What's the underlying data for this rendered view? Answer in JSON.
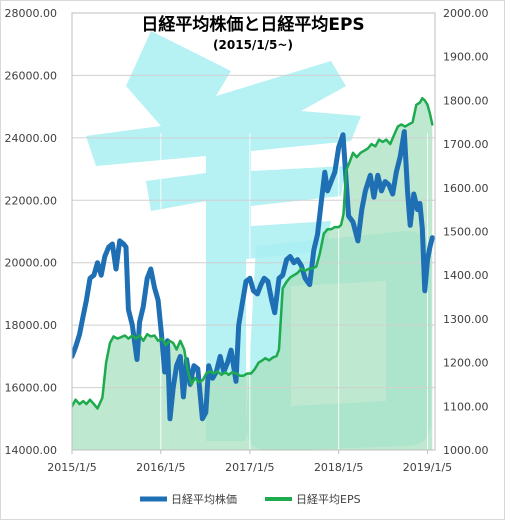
{
  "chart_data": {
    "type": "line",
    "title": "日経平均株価と日経平均EPS",
    "subtitle": "(2015/1/5~)",
    "x_ticks": [
      "2015/1/5",
      "2016/1/5",
      "2017/1/5",
      "2018/1/5",
      "2019/1/5"
    ],
    "y_left": {
      "range": [
        14000,
        28000
      ],
      "ticks": [
        "14000.00",
        "16000.00",
        "18000.00",
        "20000.00",
        "22000.00",
        "24000.00",
        "26000.00",
        "28000.00"
      ]
    },
    "y_right": {
      "range": [
        1000,
        2000
      ],
      "ticks": [
        "1000.00",
        "1100.00",
        "1200.00",
        "1300.00",
        "1400.00",
        "1500.00",
        "1600.00",
        "1700.00",
        "1800.00",
        "1900.00",
        "2000.00"
      ]
    },
    "legend_position": "bottom",
    "series": [
      {
        "name": "日経平均株価",
        "axis": "left",
        "color": "#1f6fb4",
        "points": [
          [
            "2015-01-05",
            17000
          ],
          [
            "2015-01-20",
            17300
          ],
          [
            "2015-02-05",
            17700
          ],
          [
            "2015-02-20",
            18300
          ],
          [
            "2015-03-05",
            18800
          ],
          [
            "2015-03-20",
            19500
          ],
          [
            "2015-04-05",
            19600
          ],
          [
            "2015-04-20",
            20000
          ],
          [
            "2015-05-05",
            19600
          ],
          [
            "2015-05-20",
            20200
          ],
          [
            "2015-06-05",
            20500
          ],
          [
            "2015-06-20",
            20600
          ],
          [
            "2015-07-05",
            19800
          ],
          [
            "2015-07-20",
            20700
          ],
          [
            "2015-08-05",
            20600
          ],
          [
            "2015-08-15",
            20500
          ],
          [
            "2015-08-25",
            18500
          ],
          [
            "2015-09-10",
            18000
          ],
          [
            "2015-09-29",
            16900
          ],
          [
            "2015-10-10",
            18100
          ],
          [
            "2015-10-25",
            18600
          ],
          [
            "2015-11-10",
            19500
          ],
          [
            "2015-11-25",
            19800
          ],
          [
            "2015-12-10",
            19200
          ],
          [
            "2015-12-25",
            18800
          ],
          [
            "2016-01-08",
            17700
          ],
          [
            "2016-01-21",
            16500
          ],
          [
            "2016-02-01",
            17500
          ],
          [
            "2016-02-12",
            15000
          ],
          [
            "2016-02-25",
            16000
          ],
          [
            "2016-03-10",
            16700
          ],
          [
            "2016-03-25",
            17000
          ],
          [
            "2016-04-07",
            15700
          ],
          [
            "2016-04-20",
            16900
          ],
          [
            "2016-05-05",
            16100
          ],
          [
            "2016-05-20",
            16700
          ],
          [
            "2016-06-05",
            16600
          ],
          [
            "2016-06-24",
            15000
          ],
          [
            "2016-07-08",
            15200
          ],
          [
            "2016-07-20",
            16700
          ],
          [
            "2016-08-05",
            16300
          ],
          [
            "2016-08-20",
            16500
          ],
          [
            "2016-09-05",
            17000
          ],
          [
            "2016-09-20",
            16500
          ],
          [
            "2016-10-05",
            16800
          ],
          [
            "2016-10-20",
            17200
          ],
          [
            "2016-11-09",
            16200
          ],
          [
            "2016-11-20",
            18000
          ],
          [
            "2016-12-05",
            18700
          ],
          [
            "2016-12-20",
            19400
          ],
          [
            "2017-01-05",
            19500
          ],
          [
            "2017-01-20",
            19100
          ],
          [
            "2017-02-05",
            19000
          ],
          [
            "2017-02-20",
            19300
          ],
          [
            "2017-03-05",
            19500
          ],
          [
            "2017-03-20",
            19400
          ],
          [
            "2017-04-05",
            18800
          ],
          [
            "2017-04-17",
            18400
          ],
          [
            "2017-05-05",
            19500
          ],
          [
            "2017-05-20",
            19600
          ],
          [
            "2017-06-05",
            20100
          ],
          [
            "2017-06-20",
            20200
          ],
          [
            "2017-07-05",
            20000
          ],
          [
            "2017-07-20",
            20100
          ],
          [
            "2017-08-05",
            19900
          ],
          [
            "2017-08-20",
            19500
          ],
          [
            "2017-09-08",
            19300
          ],
          [
            "2017-09-25",
            20400
          ],
          [
            "2017-10-10",
            20900
          ],
          [
            "2017-10-25",
            21900
          ],
          [
            "2017-11-09",
            22900
          ],
          [
            "2017-11-20",
            22300
          ],
          [
            "2017-12-05",
            22600
          ],
          [
            "2017-12-20",
            22900
          ],
          [
            "2018-01-05",
            23700
          ],
          [
            "2018-01-23",
            24100
          ],
          [
            "2018-02-05",
            22600
          ],
          [
            "2018-02-15",
            21500
          ],
          [
            "2018-03-05",
            21300
          ],
          [
            "2018-03-25",
            20700
          ],
          [
            "2018-04-10",
            21700
          ],
          [
            "2018-04-25",
            22300
          ],
          [
            "2018-05-15",
            22800
          ],
          [
            "2018-05-30",
            22100
          ],
          [
            "2018-06-15",
            22800
          ],
          [
            "2018-06-30",
            22300
          ],
          [
            "2018-07-15",
            22600
          ],
          [
            "2018-07-30",
            22500
          ],
          [
            "2018-08-15",
            22200
          ],
          [
            "2018-08-30",
            22900
          ],
          [
            "2018-09-15",
            23400
          ],
          [
            "2018-10-02",
            24200
          ],
          [
            "2018-10-15",
            22300
          ],
          [
            "2018-10-26",
            21200
          ],
          [
            "2018-11-10",
            22200
          ],
          [
            "2018-11-25",
            21700
          ],
          [
            "2018-12-05",
            21900
          ],
          [
            "2018-12-15",
            21100
          ],
          [
            "2018-12-25",
            19100
          ],
          [
            "2019-01-05",
            20100
          ],
          [
            "2019-01-15",
            20500
          ],
          [
            "2019-01-25",
            20800
          ]
        ]
      },
      {
        "name": "日経平均EPS",
        "axis": "right",
        "color": "#1eaa4e",
        "points": [
          [
            "2015-01-05",
            1100
          ],
          [
            "2015-01-20",
            1115
          ],
          [
            "2015-02-05",
            1105
          ],
          [
            "2015-02-20",
            1112
          ],
          [
            "2015-03-05",
            1105
          ],
          [
            "2015-03-20",
            1115
          ],
          [
            "2015-04-05",
            1105
          ],
          [
            "2015-04-20",
            1095
          ],
          [
            "2015-05-10",
            1120
          ],
          [
            "2015-05-25",
            1200
          ],
          [
            "2015-06-10",
            1245
          ],
          [
            "2015-06-25",
            1260
          ],
          [
            "2015-07-10",
            1255
          ],
          [
            "2015-07-25",
            1258
          ],
          [
            "2015-08-10",
            1262
          ],
          [
            "2015-08-25",
            1255
          ],
          [
            "2015-09-10",
            1262
          ],
          [
            "2015-09-25",
            1255
          ],
          [
            "2015-10-10",
            1262
          ],
          [
            "2015-10-25",
            1250
          ],
          [
            "2015-11-10",
            1265
          ],
          [
            "2015-11-25",
            1260
          ],
          [
            "2015-12-10",
            1262
          ],
          [
            "2015-12-25",
            1250
          ],
          [
            "2016-01-10",
            1255
          ],
          [
            "2016-01-25",
            1240
          ],
          [
            "2016-02-10",
            1250
          ],
          [
            "2016-02-25",
            1245
          ],
          [
            "2016-03-10",
            1230
          ],
          [
            "2016-03-25",
            1250
          ],
          [
            "2016-04-10",
            1230
          ],
          [
            "2016-04-25",
            1180
          ],
          [
            "2016-05-10",
            1150
          ],
          [
            "2016-05-25",
            1165
          ],
          [
            "2016-06-10",
            1155
          ],
          [
            "2016-06-25",
            1160
          ],
          [
            "2016-07-10",
            1175
          ],
          [
            "2016-07-25",
            1180
          ],
          [
            "2016-08-10",
            1175
          ],
          [
            "2016-08-25",
            1180
          ],
          [
            "2016-09-10",
            1172
          ],
          [
            "2016-09-25",
            1178
          ],
          [
            "2016-10-10",
            1172
          ],
          [
            "2016-10-25",
            1178
          ],
          [
            "2016-11-10",
            1175
          ],
          [
            "2016-11-25",
            1170
          ],
          [
            "2016-12-10",
            1170
          ],
          [
            "2016-12-25",
            1175
          ],
          [
            "2017-01-10",
            1175
          ],
          [
            "2017-01-25",
            1185
          ],
          [
            "2017-02-10",
            1200
          ],
          [
            "2017-02-25",
            1205
          ],
          [
            "2017-03-10",
            1210
          ],
          [
            "2017-03-25",
            1205
          ],
          [
            "2017-04-10",
            1212
          ],
          [
            "2017-04-25",
            1215
          ],
          [
            "2017-05-05",
            1230
          ],
          [
            "2017-05-20",
            1370
          ],
          [
            "2017-06-05",
            1385
          ],
          [
            "2017-06-20",
            1395
          ],
          [
            "2017-07-05",
            1400
          ],
          [
            "2017-07-20",
            1405
          ],
          [
            "2017-08-05",
            1415
          ],
          [
            "2017-08-20",
            1410
          ],
          [
            "2017-09-05",
            1415
          ],
          [
            "2017-09-20",
            1415
          ],
          [
            "2017-10-05",
            1420
          ],
          [
            "2017-10-20",
            1450
          ],
          [
            "2017-11-05",
            1495
          ],
          [
            "2017-11-20",
            1505
          ],
          [
            "2017-12-05",
            1505
          ],
          [
            "2017-12-20",
            1510
          ],
          [
            "2018-01-05",
            1510
          ],
          [
            "2018-01-15",
            1515
          ],
          [
            "2018-01-25",
            1540
          ],
          [
            "2018-02-05",
            1640
          ],
          [
            "2018-02-20",
            1660
          ],
          [
            "2018-03-05",
            1680
          ],
          [
            "2018-03-20",
            1670
          ],
          [
            "2018-04-05",
            1680
          ],
          [
            "2018-04-20",
            1685
          ],
          [
            "2018-05-05",
            1690
          ],
          [
            "2018-05-20",
            1700
          ],
          [
            "2018-06-05",
            1695
          ],
          [
            "2018-06-20",
            1710
          ],
          [
            "2018-07-05",
            1705
          ],
          [
            "2018-07-20",
            1710
          ],
          [
            "2018-08-05",
            1700
          ],
          [
            "2018-08-20",
            1720
          ],
          [
            "2018-09-05",
            1740
          ],
          [
            "2018-09-20",
            1745
          ],
          [
            "2018-10-05",
            1740
          ],
          [
            "2018-10-20",
            1745
          ],
          [
            "2018-11-05",
            1750
          ],
          [
            "2018-11-20",
            1790
          ],
          [
            "2018-12-05",
            1795
          ],
          [
            "2018-12-15",
            1805
          ],
          [
            "2018-12-25",
            1800
          ],
          [
            "2019-01-05",
            1790
          ],
          [
            "2019-01-15",
            1770
          ],
          [
            "2019-01-25",
            1745
          ]
        ]
      }
    ]
  },
  "colors": {
    "price_line": "#1f6fb4",
    "eps_line": "#1eaa4e",
    "eps_area": "#a8e0bf",
    "watermark": "#a9eef2",
    "gridline": "#d0d0d0"
  }
}
